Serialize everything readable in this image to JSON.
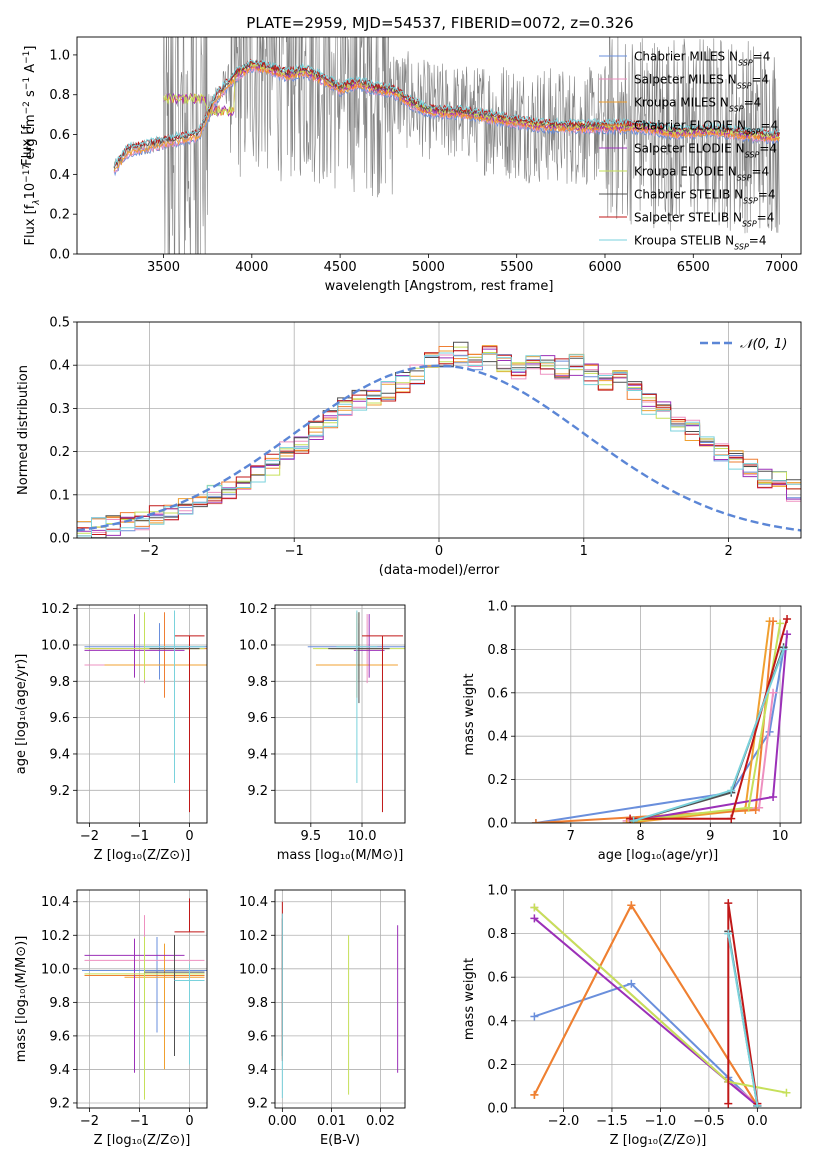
{
  "figure": {
    "title": "PLATE=2959, MJD=54537, FIBERID=0072, z=0.326"
  },
  "models": [
    {
      "name": "Chabrier MILES",
      "color": "#6a8fdc"
    },
    {
      "name": "Salpeter MILES",
      "color": "#ee90c0"
    },
    {
      "name": "Kroupa MILES",
      "color": "#f0a030"
    },
    {
      "name": "Chabrier ELODIE",
      "color": "#ef7f33"
    },
    {
      "name": "Salpeter ELODIE",
      "color": "#9b30b8"
    },
    {
      "name": "Kroupa ELODIE",
      "color": "#c6e05a"
    },
    {
      "name": "Chabrier STELIB",
      "color": "#505050"
    },
    {
      "name": "Salpeter STELIB",
      "color": "#c01818"
    },
    {
      "name": "Kroupa STELIB",
      "color": "#7ad2dc"
    }
  ],
  "legend_suffix": "N",
  "legend_sub": "SSP",
  "legend_eq": "=4",
  "chart_data": [
    {
      "id": "spectrum",
      "type": "line",
      "title": "PLATE=2959, MJD=54537, FIBERID=0072, z=0.326",
      "xlabel": "wavelength [Angstrom, rest frame]",
      "ylabel": "Flux [f",
      "ylabel_parts": [
        "Flux [f",
        "λ",
        "10",
        "−17",
        " erg cm",
        "−2",
        " s",
        "−1",
        " A",
        "−1",
        "]"
      ],
      "xlim": [
        3010,
        7110
      ],
      "ylim": [
        0,
        1.09
      ],
      "xticks": [
        3500,
        4000,
        4500,
        5000,
        5500,
        6000,
        6500,
        7000
      ],
      "yticks": [
        0.0,
        0.2,
        0.4,
        0.6,
        0.8,
        1.0
      ],
      "grid": false,
      "legend": "top-right",
      "data_series": {
        "name": "data",
        "color": "#808080",
        "x_range": [
          3220,
          6990
        ]
      },
      "model_continuum_x": [
        3220,
        3300,
        3400,
        3500,
        3600,
        3700,
        3800,
        3900,
        4000,
        4100,
        4200,
        4300,
        4400,
        4500,
        4600,
        4700,
        4800,
        4900,
        5000,
        5200,
        5400,
        5600,
        5800,
        6000,
        6200,
        6400,
        6600,
        6800,
        6990
      ],
      "model_continuum_y": [
        0.43,
        0.52,
        0.54,
        0.56,
        0.58,
        0.6,
        0.79,
        0.89,
        0.95,
        0.93,
        0.9,
        0.92,
        0.88,
        0.83,
        0.86,
        0.83,
        0.82,
        0.76,
        0.72,
        0.71,
        0.68,
        0.65,
        0.64,
        0.64,
        0.64,
        0.61,
        0.62,
        0.6,
        0.59
      ]
    },
    {
      "id": "residuals",
      "type": "histogram",
      "xlabel": "(data-model)/error",
      "ylabel": "Normed distribution",
      "xlim": [
        -2.5,
        2.5
      ],
      "ylim": [
        0,
        0.5
      ],
      "xticks": [
        -2,
        -1,
        0,
        1,
        2
      ],
      "yticks": [
        0.0,
        0.1,
        0.2,
        0.3,
        0.4,
        0.5
      ],
      "grid": true,
      "legend": "top-right",
      "legend_label": "𝒩(0, 1)",
      "bin_edges_start": -2.5,
      "bin_width": 0.1,
      "bin_heights_base": [
        0.02,
        0.025,
        0.03,
        0.035,
        0.04,
        0.05,
        0.06,
        0.07,
        0.08,
        0.1,
        0.11,
        0.13,
        0.15,
        0.17,
        0.2,
        0.22,
        0.25,
        0.27,
        0.3,
        0.32,
        0.33,
        0.34,
        0.36,
        0.38,
        0.41,
        0.42,
        0.43,
        0.41,
        0.43,
        0.4,
        0.39,
        0.41,
        0.4,
        0.39,
        0.4,
        0.38,
        0.36,
        0.37,
        0.34,
        0.31,
        0.3,
        0.27,
        0.25,
        0.22,
        0.2,
        0.18,
        0.16,
        0.14,
        0.13,
        0.11
      ],
      "normal": {
        "mean": 0,
        "sigma": 1,
        "color": "#5b86d6"
      }
    },
    {
      "id": "age-vs-Z",
      "type": "errorbar",
      "xlabel": "Z [log₁₀(Z/Z⊙)]",
      "ylabel": "age  [log₁₀(age/yr)]",
      "xlim": [
        -2.25,
        0.35
      ],
      "ylim": [
        9.02,
        10.22
      ],
      "xticks": [
        -2,
        -1,
        0
      ],
      "yticks": [
        9.2,
        9.4,
        9.6,
        9.8,
        10.0,
        10.2
      ],
      "grid": true,
      "points": [
        {
          "model": 0,
          "x": -0.6,
          "xerr": 1.5,
          "y": 9.99,
          "yerr": [
            0.18,
            0.13
          ]
        },
        {
          "model": 1,
          "x": -0.9,
          "xerr": 1.2,
          "y": 9.89,
          "yerr": [
            0.1,
            0.28
          ]
        },
        {
          "model": 2,
          "x": -0.5,
          "xerr": 1.2,
          "y": 9.89,
          "yerr": [
            0.18,
            0.28
          ]
        },
        {
          "model": 3,
          "x": -0.5,
          "xerr": 1.5,
          "y": 9.98,
          "yerr": [
            0.27,
            0.2
          ]
        },
        {
          "model": 4,
          "x": -1.1,
          "xerr": 1.0,
          "y": 9.97,
          "yerr": [
            0.15,
            0.2
          ]
        },
        {
          "model": 5,
          "x": -0.9,
          "xerr": 1.2,
          "y": 9.98,
          "yerr": [
            0.17,
            0.2
          ]
        },
        {
          "model": 6,
          "x": -0.3,
          "xerr": 0.5,
          "y": 9.98,
          "yerr": [
            0.3,
            0.2
          ]
        },
        {
          "model": 7,
          "x": 0.0,
          "xerr": 0.3,
          "y": 10.05,
          "yerr": [
            0.97,
            0.0
          ]
        },
        {
          "model": 8,
          "x": -0.3,
          "xerr": 0.6,
          "y": 9.99,
          "yerr": [
            0.75,
            0.2
          ]
        }
      ]
    },
    {
      "id": "age-vs-mass",
      "type": "errorbar",
      "xlabel": "mass [log₁₀(M/M⊙)]",
      "ylabel": "",
      "xlim": [
        9.15,
        10.42
      ],
      "ylim": [
        9.02,
        10.22
      ],
      "xticks": [
        9.5,
        10.0
      ],
      "yticks": [
        9.2,
        9.4,
        9.6,
        9.8,
        10.0,
        10.2
      ],
      "grid": true,
      "points": [
        {
          "model": 0,
          "x": 9.97,
          "xerr": 0.5,
          "y": 9.99,
          "yerr": [
            0.18,
            0.13
          ]
        },
        {
          "model": 1,
          "x": 10.05,
          "xerr": 0.3,
          "y": 9.89,
          "yerr": [
            0.1,
            0.28
          ]
        },
        {
          "model": 2,
          "x": 9.95,
          "xerr": 0.4,
          "y": 9.89,
          "yerr": [
            0.18,
            0.28
          ]
        },
        {
          "model": 3,
          "x": 9.95,
          "xerr": 0.25,
          "y": 9.98,
          "yerr": [
            0.27,
            0.2
          ]
        },
        {
          "model": 4,
          "x": 10.07,
          "xerr": 0.15,
          "y": 9.97,
          "yerr": [
            0.15,
            0.2
          ]
        },
        {
          "model": 5,
          "x": 9.97,
          "xerr": 0.45,
          "y": 9.98,
          "yerr": [
            0.17,
            0.2
          ]
        },
        {
          "model": 6,
          "x": 9.97,
          "xerr": 0.3,
          "y": 9.98,
          "yerr": [
            0.3,
            0.2
          ]
        },
        {
          "model": 7,
          "x": 10.2,
          "xerr": 0.2,
          "y": 10.05,
          "yerr": [
            0.97,
            0.0
          ]
        },
        {
          "model": 8,
          "x": 9.95,
          "xerr": 0.2,
          "y": 9.99,
          "yerr": [
            0.75,
            0.2
          ]
        }
      ]
    },
    {
      "id": "weight-vs-age",
      "type": "line",
      "xlabel": "age  [log₁₀(age/yr)]",
      "ylabel": "mass weight",
      "xlim": [
        6.2,
        10.3
      ],
      "ylim": [
        0,
        1
      ],
      "xticks": [
        7,
        8,
        9,
        10
      ],
      "yticks": [
        0.0,
        0.2,
        0.4,
        0.6,
        0.8,
        1.0
      ],
      "grid": true,
      "series": [
        {
          "model": 0,
          "x": [
            6.5,
            9.3,
            9.85,
            10.05
          ],
          "y": [
            0.0,
            0.14,
            0.42,
            0.8
          ]
        },
        {
          "model": 1,
          "x": [
            7.8,
            9.7,
            9.9
          ],
          "y": [
            0.01,
            0.07,
            0.6
          ]
        },
        {
          "model": 2,
          "x": [
            7.8,
            9.5,
            9.85
          ],
          "y": [
            0.0,
            0.06,
            0.93
          ]
        },
        {
          "model": 3,
          "x": [
            6.5,
            9.65,
            9.9
          ],
          "y": [
            0.0,
            0.06,
            0.93
          ]
        },
        {
          "model": 4,
          "x": [
            7.9,
            9.9,
            10.1
          ],
          "y": [
            0.01,
            0.12,
            0.87
          ]
        },
        {
          "model": 5,
          "x": [
            7.9,
            9.55,
            10.0
          ],
          "y": [
            0.01,
            0.07,
            0.92
          ]
        },
        {
          "model": 6,
          "x": [
            7.9,
            9.3,
            10.05
          ],
          "y": [
            0.01,
            0.14,
            0.81
          ]
        },
        {
          "model": 7,
          "x": [
            7.85,
            9.3,
            10.1
          ],
          "y": [
            0.02,
            0.02,
            0.94
          ]
        },
        {
          "model": 8,
          "x": [
            7.9,
            9.3,
            10.05
          ],
          "y": [
            0.01,
            0.15,
            0.8
          ]
        }
      ]
    },
    {
      "id": "mass-vs-Z",
      "type": "errorbar",
      "xlabel": "Z [log₁₀(Z/Z⊙)]",
      "ylabel": "mass [log₁₀(M/M⊙)]",
      "xlim": [
        -2.25,
        0.35
      ],
      "ylim": [
        9.17,
        10.47
      ],
      "xticks": [
        -2,
        -1,
        0
      ],
      "yticks": [
        9.2,
        9.4,
        9.6,
        9.8,
        10.0,
        10.2,
        10.4
      ],
      "grid": true,
      "points": [
        {
          "model": 0,
          "x": -0.65,
          "xerr": 1.5,
          "y": 9.99,
          "yerr": [
            0.37,
            0.2
          ]
        },
        {
          "model": 1,
          "x": -0.9,
          "xerr": 1.2,
          "y": 10.05,
          "yerr": [
            0.5,
            0.27
          ]
        },
        {
          "model": 2,
          "x": -0.5,
          "xerr": 0.8,
          "y": 9.95,
          "yerr": [
            0.55,
            0.2
          ]
        },
        {
          "model": 3,
          "x": -0.9,
          "xerr": 1.2,
          "y": 9.96,
          "yerr": [
            0.5,
            0.23
          ]
        },
        {
          "model": 4,
          "x": -1.1,
          "xerr": 1.0,
          "y": 10.08,
          "yerr": [
            0.7,
            0.1
          ]
        },
        {
          "model": 5,
          "x": -0.9,
          "xerr": 1.2,
          "y": 9.97,
          "yerr": [
            0.75,
            0.22
          ]
        },
        {
          "model": 6,
          "x": -0.3,
          "xerr": 0.6,
          "y": 9.98,
          "yerr": [
            0.5,
            0.22
          ]
        },
        {
          "model": 7,
          "x": 0.0,
          "xerr": 0.3,
          "y": 10.22,
          "yerr": [
            0.0,
            0.2
          ]
        },
        {
          "model": 8,
          "x": 0.0,
          "xerr": 0.3,
          "y": 9.93,
          "yerr": [
            0.5,
            0.1
          ]
        }
      ]
    },
    {
      "id": "mass-vs-ebv",
      "type": "errorbar",
      "xlabel": "E(B-V)",
      "ylabel": "",
      "xlim": [
        -0.0015,
        0.025
      ],
      "ylim": [
        9.17,
        10.47
      ],
      "xticks": [
        0.0,
        0.01,
        0.02
      ],
      "yticks": [
        9.2,
        9.4,
        9.6,
        9.8,
        10.0,
        10.2,
        10.4
      ],
      "grid": true,
      "points": [
        {
          "model": 0,
          "x": 0.0,
          "xerr": 0,
          "y": 9.99,
          "yerr": [
            0.37,
            0.2
          ]
        },
        {
          "model": 3,
          "x": 0.0,
          "xerr": 0,
          "y": 9.96,
          "yerr": [
            0.5,
            0.23
          ]
        },
        {
          "model": 4,
          "x": 0.0235,
          "xerr": 0,
          "y": 9.8,
          "yerr": [
            0.42,
            0.46
          ]
        },
        {
          "model": 5,
          "x": 0.0135,
          "xerr": 0,
          "y": 9.75,
          "yerr": [
            0.5,
            0.45
          ]
        },
        {
          "model": 6,
          "x": 0.0,
          "xerr": 0,
          "y": 9.98,
          "yerr": [
            0.5,
            0.32
          ]
        },
        {
          "model": 7,
          "x": 0.0,
          "xerr": 0,
          "y": 9.95,
          "yerr": [
            0.5,
            0.45
          ]
        },
        {
          "model": 8,
          "x": 0.0,
          "xerr": 0,
          "y": 9.93,
          "yerr": [
            0.7,
            0.4
          ]
        }
      ]
    },
    {
      "id": "weight-vs-Z",
      "type": "line",
      "xlabel": "Z [log₁₀(Z/Z⊙)]",
      "ylabel": "mass weight",
      "xlim": [
        -2.5,
        0.45
      ],
      "ylim": [
        0,
        1
      ],
      "xticks": [
        -2.0,
        -1.5,
        -1.0,
        -0.5,
        0.0
      ],
      "yticks": [
        0.0,
        0.2,
        0.4,
        0.6,
        0.8,
        1.0
      ],
      "grid": true,
      "series": [
        {
          "model": 0,
          "x": [
            -2.3,
            -1.3,
            -0.3,
            0.0
          ],
          "y": [
            0.42,
            0.57,
            0.14,
            0.01
          ]
        },
        {
          "model": 1,
          "x": [
            -2.3,
            -0.3,
            0.0
          ],
          "y": [
            0.92,
            0.12,
            0.02
          ]
        },
        {
          "model": 2,
          "x": [
            -2.3,
            -1.3,
            0.0
          ],
          "y": [
            0.06,
            0.93,
            0.01
          ]
        },
        {
          "model": 3,
          "x": [
            -2.3,
            -1.3,
            0.0
          ],
          "y": [
            0.06,
            0.93,
            0.01
          ]
        },
        {
          "model": 4,
          "x": [
            -2.3,
            -0.3,
            0.0
          ],
          "y": [
            0.87,
            0.12,
            0.01
          ]
        },
        {
          "model": 5,
          "x": [
            -2.3,
            -0.3,
            0.3
          ],
          "y": [
            0.92,
            0.12,
            0.07
          ]
        },
        {
          "model": 6,
          "x": [
            -0.3,
            0.0
          ],
          "y": [
            0.81,
            0.01
          ]
        },
        {
          "model": 7,
          "x": [
            -0.3,
            -0.3,
            0.0
          ],
          "y": [
            0.02,
            0.94,
            0.02
          ]
        },
        {
          "model": 8,
          "x": [
            -0.3,
            0.0
          ],
          "y": [
            0.8,
            0.01
          ]
        }
      ]
    }
  ]
}
